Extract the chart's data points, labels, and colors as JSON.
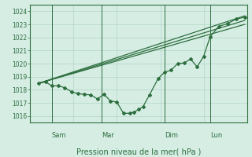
{
  "xlabel": "Pression niveau de la mer( hPa )",
  "bg_color": "#d6ede4",
  "grid_color": "#b8d9cc",
  "line_color": "#2d6e3e",
  "ylim": [
    1015.5,
    1024.5
  ],
  "yticks": [
    1016,
    1017,
    1018,
    1019,
    1020,
    1021,
    1022,
    1023,
    1024
  ],
  "xlim": [
    0,
    1.0
  ],
  "day_labels": [
    "Sam",
    "Mar",
    "Dim",
    "Lun"
  ],
  "day_positions": [
    0.1,
    0.33,
    0.62,
    0.83
  ],
  "vline_start": 0.04,
  "series_main": [
    [
      0.04,
      1018.5
    ],
    [
      0.07,
      1018.6
    ],
    [
      0.1,
      1018.3
    ],
    [
      0.13,
      1018.3
    ],
    [
      0.16,
      1018.15
    ],
    [
      0.19,
      1017.85
    ],
    [
      0.22,
      1017.7
    ],
    [
      0.25,
      1017.65
    ],
    [
      0.28,
      1017.6
    ],
    [
      0.31,
      1017.3
    ],
    [
      0.34,
      1017.65
    ],
    [
      0.37,
      1017.15
    ],
    [
      0.4,
      1017.05
    ],
    [
      0.43,
      1016.2
    ],
    [
      0.46,
      1016.2
    ],
    [
      0.48,
      1016.3
    ],
    [
      0.5,
      1016.5
    ],
    [
      0.52,
      1016.7
    ],
    [
      0.55,
      1017.6
    ],
    [
      0.59,
      1018.85
    ],
    [
      0.62,
      1019.35
    ],
    [
      0.65,
      1019.5
    ],
    [
      0.68,
      1020.0
    ],
    [
      0.71,
      1020.05
    ],
    [
      0.74,
      1020.35
    ],
    [
      0.77,
      1019.75
    ],
    [
      0.8,
      1020.55
    ],
    [
      0.83,
      1022.05
    ],
    [
      0.87,
      1022.85
    ],
    [
      0.91,
      1023.05
    ],
    [
      0.95,
      1023.4
    ],
    [
      0.99,
      1023.55
    ]
  ],
  "series_upper": [
    [
      0.04,
      1018.5
    ],
    [
      0.99,
      1023.65
    ]
  ],
  "series_middle": [
    [
      0.04,
      1018.5
    ],
    [
      0.99,
      1023.3
    ]
  ],
  "series_lower": [
    [
      0.04,
      1018.5
    ],
    [
      0.99,
      1023.0
    ]
  ]
}
